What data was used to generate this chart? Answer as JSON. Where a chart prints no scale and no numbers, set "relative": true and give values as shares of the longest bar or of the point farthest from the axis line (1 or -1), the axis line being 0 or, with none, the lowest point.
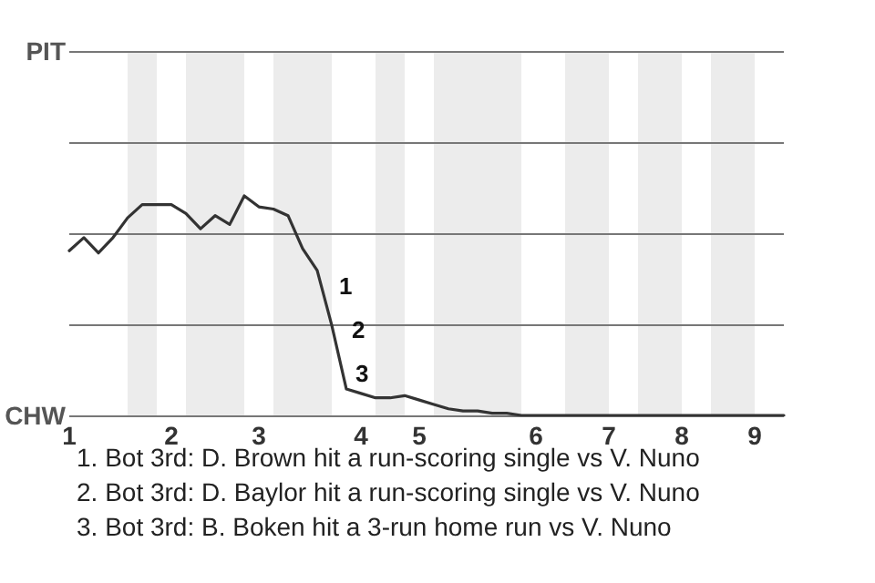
{
  "chart_data": {
    "type": "line",
    "relative": true,
    "categories": [
      "1",
      null,
      null,
      null,
      null,
      null,
      null,
      "2",
      null,
      null,
      null,
      null,
      null,
      "3",
      null,
      null,
      null,
      null,
      null,
      null,
      "4",
      null,
      null,
      null,
      "5",
      null,
      null,
      null,
      null,
      null,
      null,
      null,
      "6",
      null,
      null,
      null,
      null,
      "7",
      null,
      null,
      null,
      null,
      "8",
      null,
      null,
      null,
      null,
      "9",
      null,
      null
    ],
    "series": [
      {
        "color": "#333333",
        "values": [
          0.75,
          0.81,
          0.74,
          0.81,
          0.9,
          0.96,
          0.96,
          0.96,
          0.92,
          0.85,
          0.91,
          0.87,
          1,
          0.95,
          0.94,
          0.91,
          0.76,
          0.66,
          0.41,
          0.12,
          0.1,
          0.08,
          0.08,
          0.09,
          0.07,
          0.05,
          0.03,
          0.02,
          0.02,
          0.01,
          0.01,
          0,
          0,
          0,
          0,
          0,
          0,
          0,
          0,
          0,
          0,
          0,
          0,
          0,
          0,
          0,
          0,
          0,
          0,
          0
        ]
      }
    ],
    "marker": "none",
    "line_style": "solid",
    "ref_lines": [
      {
        "axis": "y",
        "value": 0,
        "label": "CHW",
        "color": "#777777"
      },
      {
        "axis": "y",
        "value": 0.41,
        "color": "#777777"
      },
      {
        "axis": "y",
        "value": 0.83,
        "color": "#777777"
      },
      {
        "axis": "y",
        "value": 1.24,
        "color": "#777777"
      },
      {
        "axis": "y",
        "value": 1.66,
        "label": "PIT",
        "color": "#777777"
      }
    ],
    "annotations": [
      "1",
      "2",
      "3",
      "1. Bot 3rd: D. Brown hit a run-scoring single vs V. Nuno",
      "2. Bot 3rd: D. Baylor hit a run-scoring single vs V. Nuno",
      "3. Bot 3rd: B. Boken hit a 3-run home run vs V. Nuno"
    ]
  }
}
